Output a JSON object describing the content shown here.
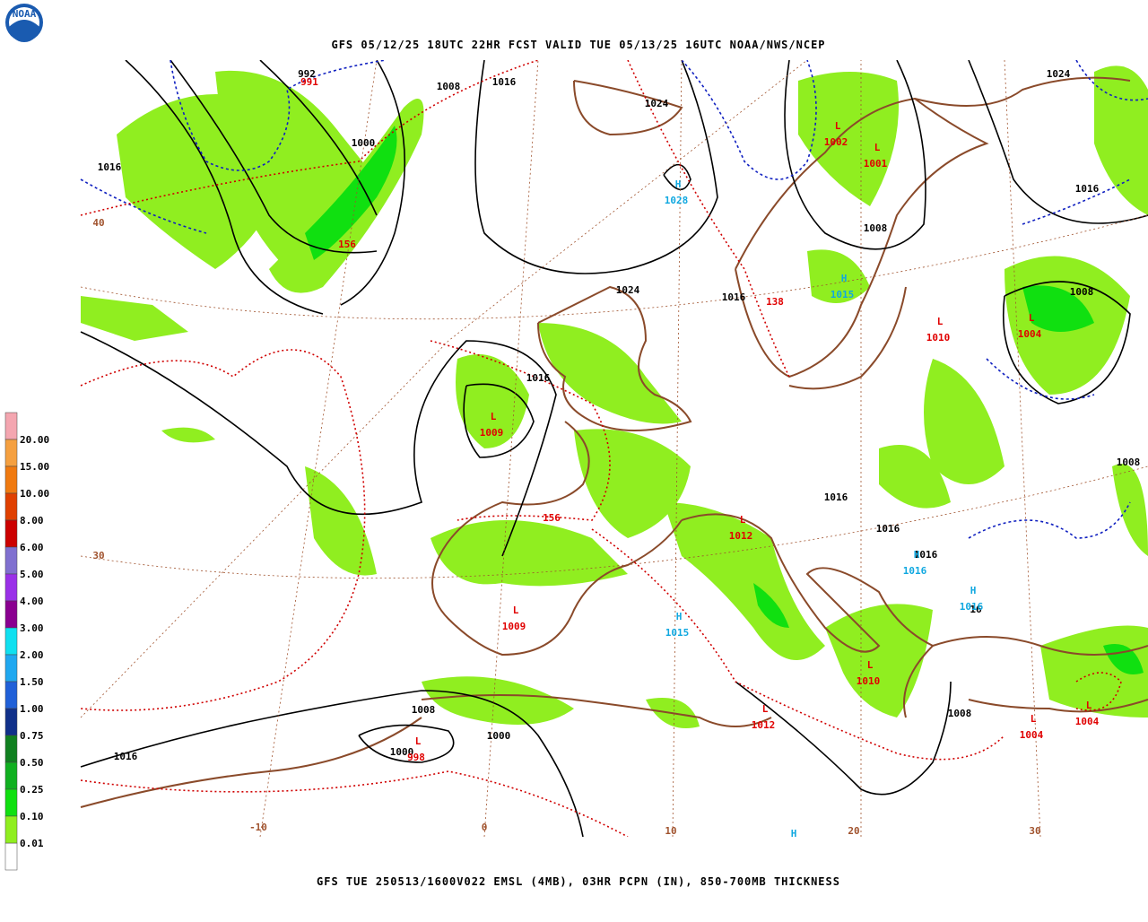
{
  "header": {
    "title": "GFS 05/12/25 18UTC 22HR FCST VALID TUE 05/13/25 16UTC NOAA/NWS/NCEP"
  },
  "footer": {
    "caption": "GFS TUE 250513/1600V022 EMSL (4MB), 03HR PCPN (IN), 850-700MB THICKNESS"
  },
  "logo": {
    "text": "NOAA"
  },
  "legend": {
    "items": [
      {
        "label": "20.00",
        "color": "#f4a6b0"
      },
      {
        "label": "15.00",
        "color": "#f5a040"
      },
      {
        "label": "10.00",
        "color": "#f07a10"
      },
      {
        "label": "8.00",
        "color": "#e04000"
      },
      {
        "label": "6.00",
        "color": "#cc0000"
      },
      {
        "label": "5.00",
        "color": "#8070d0"
      },
      {
        "label": "4.00",
        "color": "#9a30e8"
      },
      {
        "label": "3.00",
        "color": "#8a0090"
      },
      {
        "label": "2.00",
        "color": "#10e0f0"
      },
      {
        "label": "1.50",
        "color": "#20a8f0"
      },
      {
        "label": "1.00",
        "color": "#2060d8"
      },
      {
        "label": "0.75",
        "color": "#10308a"
      },
      {
        "label": "0.50",
        "color": "#108020"
      },
      {
        "label": "0.25",
        "color": "#10b020"
      },
      {
        "label": "0.10",
        "color": "#10e010"
      },
      {
        "label": "0.01",
        "color": "#90ee20"
      }
    ]
  },
  "map": {
    "isobars": [
      992,
      1008,
      1016,
      1024,
      1000,
      1016,
      1024,
      1016,
      1008,
      1024,
      1016,
      1008,
      1016,
      1016,
      1016,
      1016,
      1008,
      16,
      1008,
      1000,
      1000,
      1016,
      1008
    ],
    "lows": [
      {
        "letter": "L",
        "value": 1002
      },
      {
        "letter": "L",
        "value": 1001
      },
      {
        "letter": "L",
        "value": 1010
      },
      {
        "letter": "L",
        "value": 1004
      },
      {
        "letter": "L",
        "value": 1009
      },
      {
        "letter": "L",
        "value": 1012
      },
      {
        "letter": "L",
        "value": 1009
      },
      {
        "letter": "L",
        "value": 1010
      },
      {
        "letter": "L",
        "value": 1012
      },
      {
        "letter": "L",
        "value": 998
      },
      {
        "letter": "L",
        "value": 1004
      },
      {
        "letter": "L",
        "value": 1004
      }
    ],
    "highs": [
      {
        "letter": "H",
        "value": 1028
      },
      {
        "letter": "H",
        "value": 1015
      },
      {
        "letter": "H",
        "value": 1016
      },
      {
        "letter": "H",
        "value": 1016
      },
      {
        "letter": "H",
        "value": 1015
      },
      {
        "letter": "H"
      }
    ],
    "thickness": [
      991,
      156,
      156,
      138
    ],
    "meridians": [
      40,
      30,
      -10,
      0,
      10,
      20,
      30
    ]
  }
}
